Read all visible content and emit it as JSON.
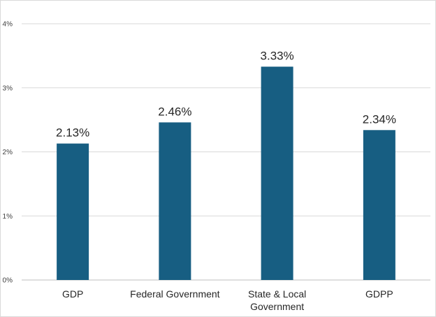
{
  "chart_data": {
    "type": "bar",
    "categories": [
      "GDP",
      "Federal Government",
      "State & Local Government",
      "GDPP"
    ],
    "category_label_lines": [
      [
        "GDP"
      ],
      [
        "Federal Government"
      ],
      [
        "State & Local",
        "Government"
      ],
      [
        "GDPP"
      ]
    ],
    "values": [
      2.13,
      2.46,
      3.33,
      2.34
    ],
    "value_labels": [
      "2.13%",
      "2.46%",
      "3.33%",
      "2.34%"
    ],
    "ylim": [
      0,
      4
    ],
    "yticks": [
      0,
      1,
      2,
      3,
      4
    ],
    "ytick_labels": [
      "0%",
      "1%",
      "2%",
      "3%",
      "4%"
    ],
    "title": "",
    "xlabel": "",
    "ylabel": "",
    "grid": true,
    "legend": "none",
    "colors": {
      "bar": "#175e82",
      "grid": "#d9d9d9",
      "axis": "#bfbfbf"
    }
  }
}
